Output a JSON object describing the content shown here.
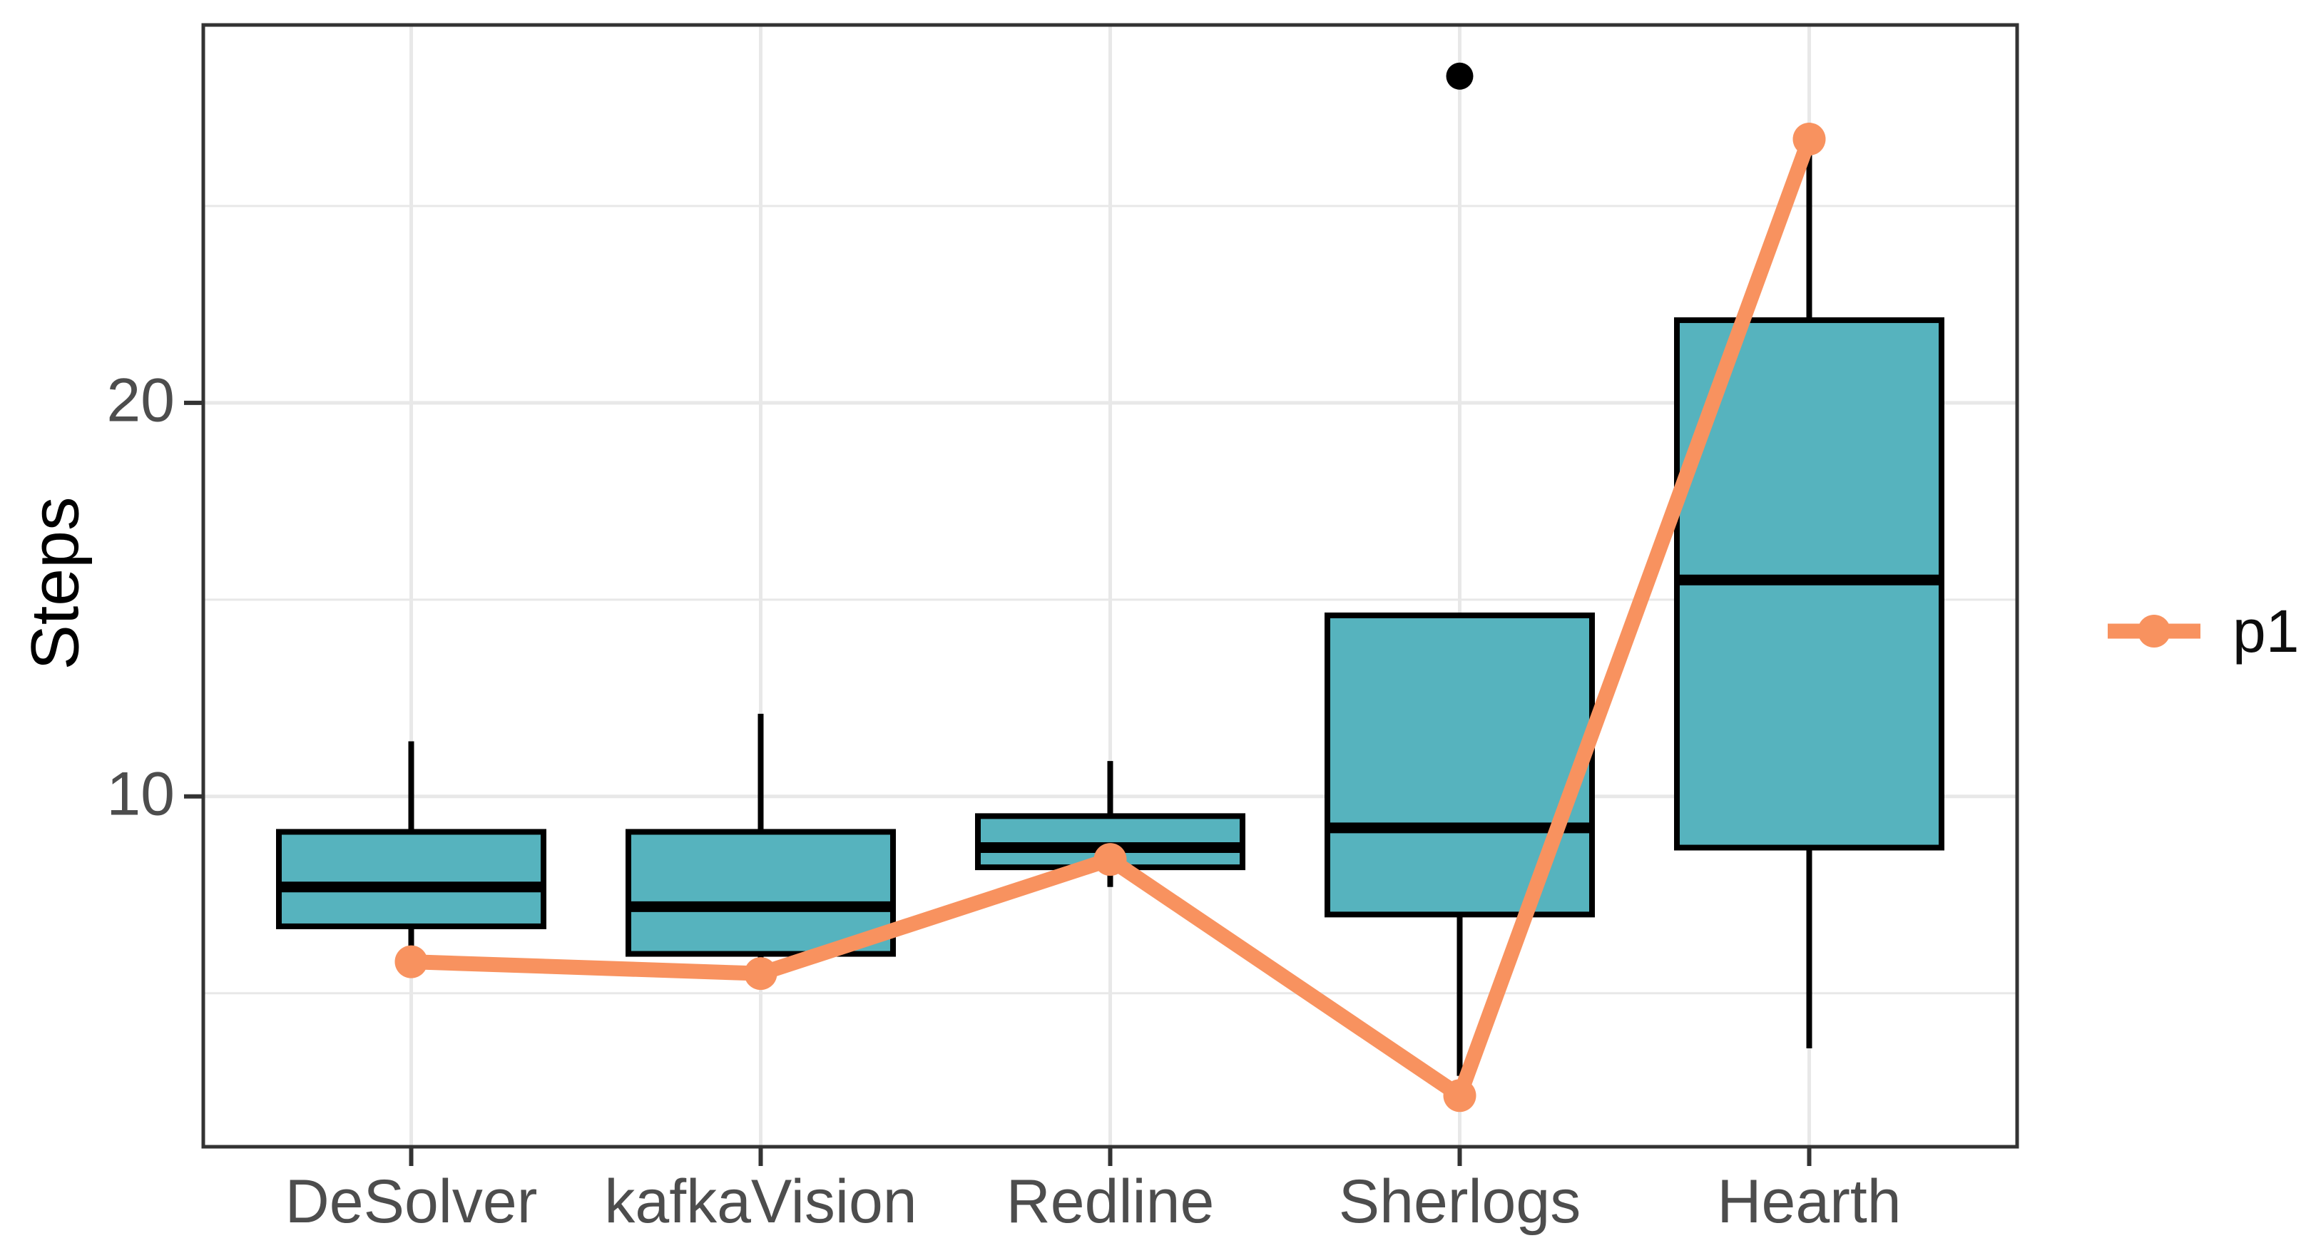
{
  "chart_data": {
    "type": "boxplot",
    "title": "",
    "xlabel": "",
    "ylabel": "Steps",
    "categories": [
      "DeSolver",
      "kafkaVision",
      "Redline",
      "Sherlogs",
      "Hearth"
    ],
    "boxes": [
      {
        "category": "DeSolver",
        "whisker_low": 5.9,
        "q1": 6.7,
        "median": 7.7,
        "q3": 9.1,
        "whisker_high": 11.4,
        "outliers": []
      },
      {
        "category": "kafkaVision",
        "whisker_low": 5.6,
        "q1": 6.0,
        "median": 7.2,
        "q3": 9.1,
        "whisker_high": 12.1,
        "outliers": []
      },
      {
        "category": "Redline",
        "whisker_low": 7.7,
        "q1": 8.2,
        "median": 8.7,
        "q3": 9.5,
        "whisker_high": 10.9,
        "outliers": []
      },
      {
        "category": "Sherlogs",
        "whisker_low": 2.9,
        "q1": 7.0,
        "median": 9.2,
        "q3": 14.6,
        "whisker_high": 14.6,
        "outliers": [
          28.3
        ]
      },
      {
        "category": "Hearth",
        "whisker_low": 3.6,
        "q1": 8.7,
        "median": 15.5,
        "q3": 22.1,
        "whisker_high": 26.3,
        "outliers": []
      }
    ],
    "line_series": [
      {
        "name": "p1",
        "values": [
          5.8,
          5.5,
          8.4,
          2.4,
          26.7
        ]
      }
    ],
    "y_ticks": [
      20,
      10
    ],
    "y_tick_values": [
      20,
      10
    ],
    "y_minor_ticks": [
      25,
      15,
      5
    ],
    "ylim": [
      1.1,
      29.6
    ],
    "grid": "on",
    "legend": {
      "position": "right",
      "entries": [
        {
          "label": "p1",
          "symbol": "line-with-point"
        }
      ]
    },
    "colors": {
      "box_fill": "#56B3BE",
      "box_stroke": "#000000",
      "median": "#000000",
      "whisker": "#000000",
      "outlier": "#000000",
      "line": "#F8925F",
      "panel_border": "#333333",
      "gridline": "#E8E8E8",
      "tick": "#333333",
      "axis_text": "#4D4D4D",
      "background": "#FFFFFF"
    }
  }
}
